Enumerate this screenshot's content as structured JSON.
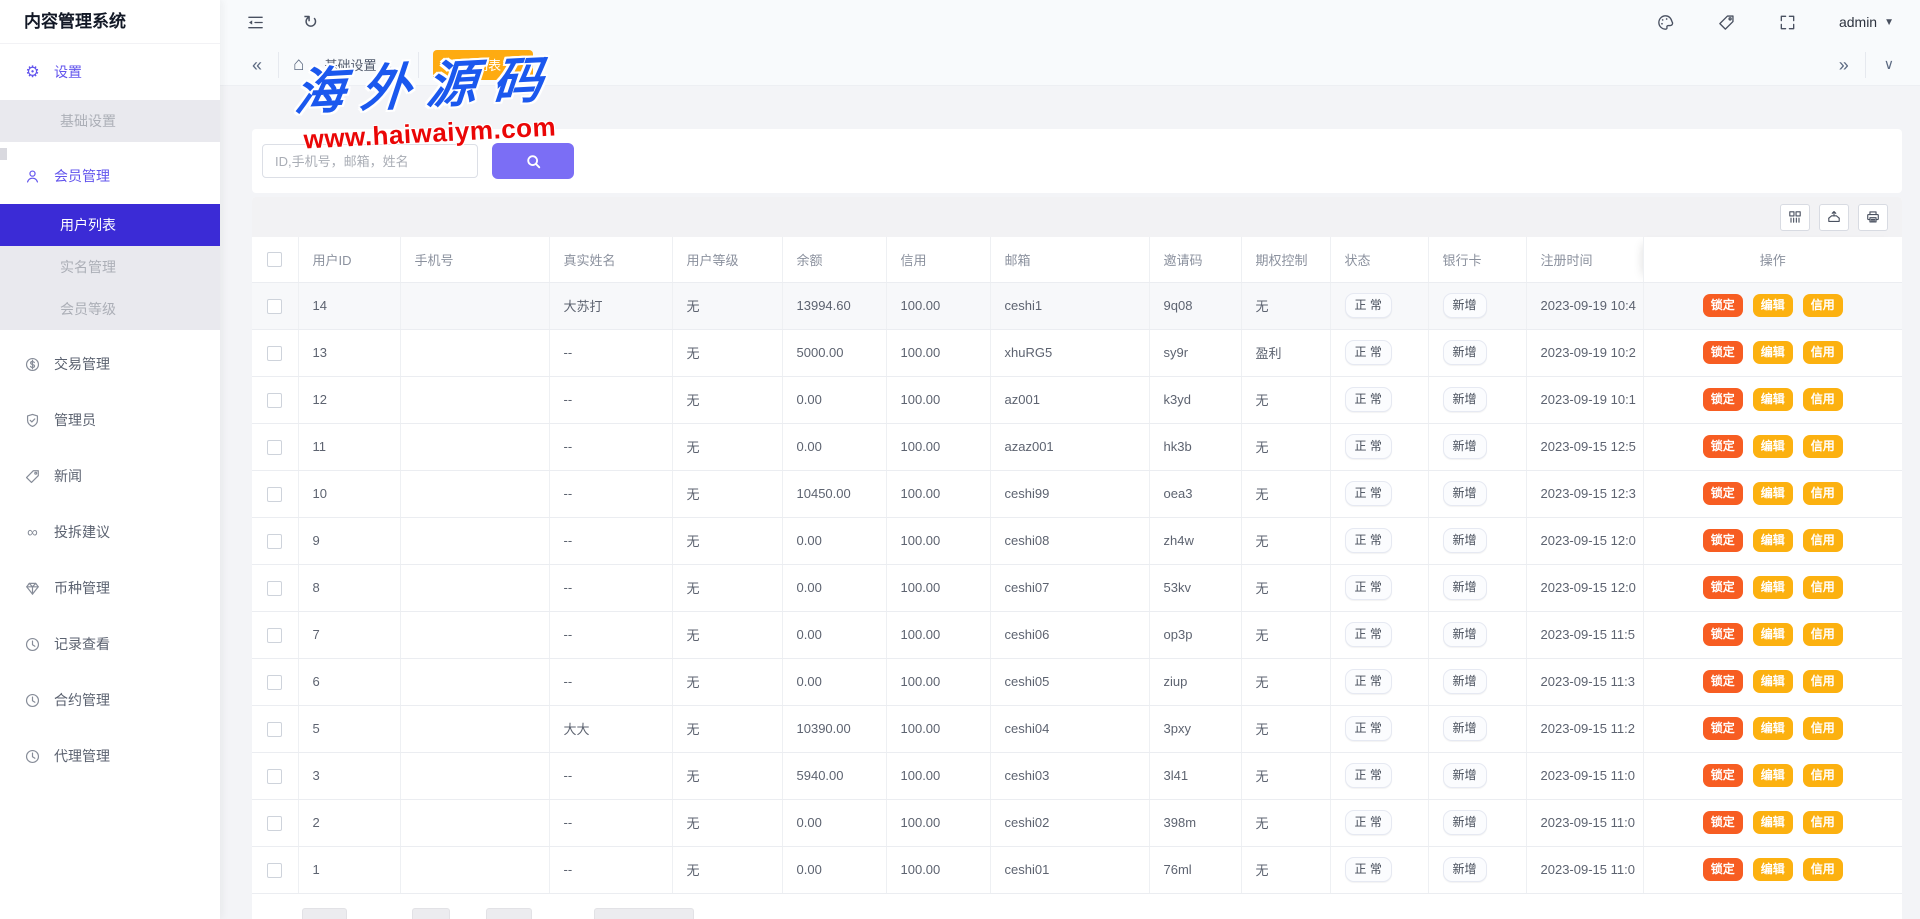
{
  "app": {
    "title": "内容管理系统"
  },
  "icons": {
    "collapse": "«",
    "scroll_right": "»",
    "more": "∨",
    "caret": "▼",
    "home": "⌂",
    "gear": "⚙",
    "refresh": "↻",
    "link": "∞",
    "close": "×"
  },
  "topbar": {
    "user": {
      "name": "admin"
    }
  },
  "tabbar": {
    "tabs": [
      {
        "label": "基础设置",
        "active": false
      },
      {
        "label": "用户列表",
        "active": true
      }
    ]
  },
  "watermark": {
    "title": "海外源码",
    "url": "www.haiwaiym.com"
  },
  "search": {
    "placeholder": "ID,手机号，邮箱，姓名"
  },
  "sidebar": {
    "items": [
      {
        "name": "settings",
        "label": "设置",
        "icon": "gear",
        "kind": "parent",
        "purple": true
      },
      {
        "name": "basic-settings",
        "label": "基础设置",
        "kind": "sub",
        "state": "default"
      },
      {
        "name": "member-management",
        "label": "会员管理",
        "icon": "user",
        "kind": "parent",
        "purple": true
      },
      {
        "name": "user-list",
        "label": "用户列表",
        "kind": "sub",
        "state": "active"
      },
      {
        "name": "realname-management",
        "label": "实名管理",
        "kind": "sub",
        "state": "default"
      },
      {
        "name": "member-level",
        "label": "会员等级",
        "kind": "sub",
        "state": "default"
      },
      {
        "name": "trade-management",
        "label": "交易管理",
        "icon": "dollar",
        "kind": "parent"
      },
      {
        "name": "admin-management",
        "label": "管理员",
        "icon": "shield",
        "kind": "parent"
      },
      {
        "name": "news",
        "label": "新闻",
        "icon": "tag",
        "kind": "parent"
      },
      {
        "name": "suggestions",
        "label": "投拆建议",
        "icon": "link",
        "kind": "parent"
      },
      {
        "name": "coin-management",
        "label": "币种管理",
        "icon": "gem",
        "kind": "parent"
      },
      {
        "name": "record-view",
        "label": "记录查看",
        "icon": "clock",
        "kind": "parent"
      },
      {
        "name": "contract-management",
        "label": "合约管理",
        "icon": "clock",
        "kind": "parent"
      },
      {
        "name": "agent-management",
        "label": "代理管理",
        "icon": "clock",
        "kind": "parent"
      }
    ]
  },
  "table": {
    "columns": [
      "用户ID",
      "手机号",
      "真实姓名",
      "用户等级",
      "余额",
      "信用",
      "邮箱",
      "邀请码",
      "期权控制",
      "状态",
      "银行卡",
      "注册时间",
      "操作"
    ],
    "action_labels": [
      "锁定",
      "编辑",
      "信用"
    ],
    "rows": [
      {
        "user_id": "14",
        "phone": "",
        "real_name": "大苏打",
        "user_level": "无",
        "balance": "13994.60",
        "credit": "100.00",
        "email": "ceshi1",
        "invite_code": "9q08",
        "option_control": "无",
        "status": "正 常",
        "bank_card": "新增",
        "reg_time": "2023-09-19 10:4",
        "striped": true
      },
      {
        "user_id": "13",
        "phone": "",
        "real_name": "--",
        "user_level": "无",
        "balance": "5000.00",
        "credit": "100.00",
        "email": "xhuRG5",
        "invite_code": "sy9r",
        "option_control": "盈利",
        "status": "正 常",
        "bank_card": "新增",
        "reg_time": "2023-09-19 10:2",
        "striped": false
      },
      {
        "user_id": "12",
        "phone": "",
        "real_name": "--",
        "user_level": "无",
        "balance": "0.00",
        "credit": "100.00",
        "email": "az001",
        "invite_code": "k3yd",
        "option_control": "无",
        "status": "正 常",
        "bank_card": "新增",
        "reg_time": "2023-09-19 10:1",
        "striped": false
      },
      {
        "user_id": "11",
        "phone": "",
        "real_name": "--",
        "user_level": "无",
        "balance": "0.00",
        "credit": "100.00",
        "email": "azaz001",
        "invite_code": "hk3b",
        "option_control": "无",
        "status": "正 常",
        "bank_card": "新增",
        "reg_time": "2023-09-15 12:5",
        "striped": false
      },
      {
        "user_id": "10",
        "phone": "",
        "real_name": "--",
        "user_level": "无",
        "balance": "10450.00",
        "credit": "100.00",
        "email": "ceshi99",
        "invite_code": "oea3",
        "option_control": "无",
        "status": "正 常",
        "bank_card": "新增",
        "reg_time": "2023-09-15 12:3",
        "striped": false
      },
      {
        "user_id": "9",
        "phone": "",
        "real_name": "--",
        "user_level": "无",
        "balance": "0.00",
        "credit": "100.00",
        "email": "ceshi08",
        "invite_code": "zh4w",
        "option_control": "无",
        "status": "正 常",
        "bank_card": "新增",
        "reg_time": "2023-09-15 12:0",
        "striped": false
      },
      {
        "user_id": "8",
        "phone": "",
        "real_name": "--",
        "user_level": "无",
        "balance": "0.00",
        "credit": "100.00",
        "email": "ceshi07",
        "invite_code": "53kv",
        "option_control": "无",
        "status": "正 常",
        "bank_card": "新增",
        "reg_time": "2023-09-15 12:0",
        "striped": false
      },
      {
        "user_id": "7",
        "phone": "",
        "real_name": "--",
        "user_level": "无",
        "balance": "0.00",
        "credit": "100.00",
        "email": "ceshi06",
        "invite_code": "op3p",
        "option_control": "无",
        "status": "正 常",
        "bank_card": "新增",
        "reg_time": "2023-09-15 11:5",
        "striped": false
      },
      {
        "user_id": "6",
        "phone": "",
        "real_name": "--",
        "user_level": "无",
        "balance": "0.00",
        "credit": "100.00",
        "email": "ceshi05",
        "invite_code": "ziup",
        "option_control": "无",
        "status": "正 常",
        "bank_card": "新增",
        "reg_time": "2023-09-15 11:3",
        "striped": false
      },
      {
        "user_id": "5",
        "phone": "",
        "real_name": "大大",
        "user_level": "无",
        "balance": "10390.00",
        "credit": "100.00",
        "email": "ceshi04",
        "invite_code": "3pxy",
        "option_control": "无",
        "status": "正 常",
        "bank_card": "新增",
        "reg_time": "2023-09-15 11:2",
        "striped": false
      },
      {
        "user_id": "3",
        "phone": "",
        "real_name": "--",
        "user_level": "无",
        "balance": "5940.00",
        "credit": "100.00",
        "email": "ceshi03",
        "invite_code": "3l41",
        "option_control": "无",
        "status": "正 常",
        "bank_card": "新增",
        "reg_time": "2023-09-15 11:0",
        "striped": false
      },
      {
        "user_id": "2",
        "phone": "",
        "real_name": "--",
        "user_level": "无",
        "balance": "0.00",
        "credit": "100.00",
        "email": "ceshi02",
        "invite_code": "398m",
        "option_control": "无",
        "status": "正 常",
        "bank_card": "新增",
        "reg_time": "2023-09-15 11:0",
        "striped": false
      },
      {
        "user_id": "1",
        "phone": "",
        "real_name": "--",
        "user_level": "无",
        "balance": "0.00",
        "credit": "100.00",
        "email": "ceshi01",
        "invite_code": "76ml",
        "option_control": "无",
        "status": "正 常",
        "bank_card": "新增",
        "reg_time": "2023-09-15 11:0",
        "striped": false
      }
    ]
  },
  "colors": {
    "primary_active": "#3b2bd6",
    "menu_purple": "#6254ed",
    "tab_active": "#feab11",
    "search_button": "#7b6ef5",
    "action_lock": "#f75d22",
    "action_edit": "#fcb110",
    "watermark_blue": "#1b58ee",
    "watermark_red": "#ea0606"
  }
}
